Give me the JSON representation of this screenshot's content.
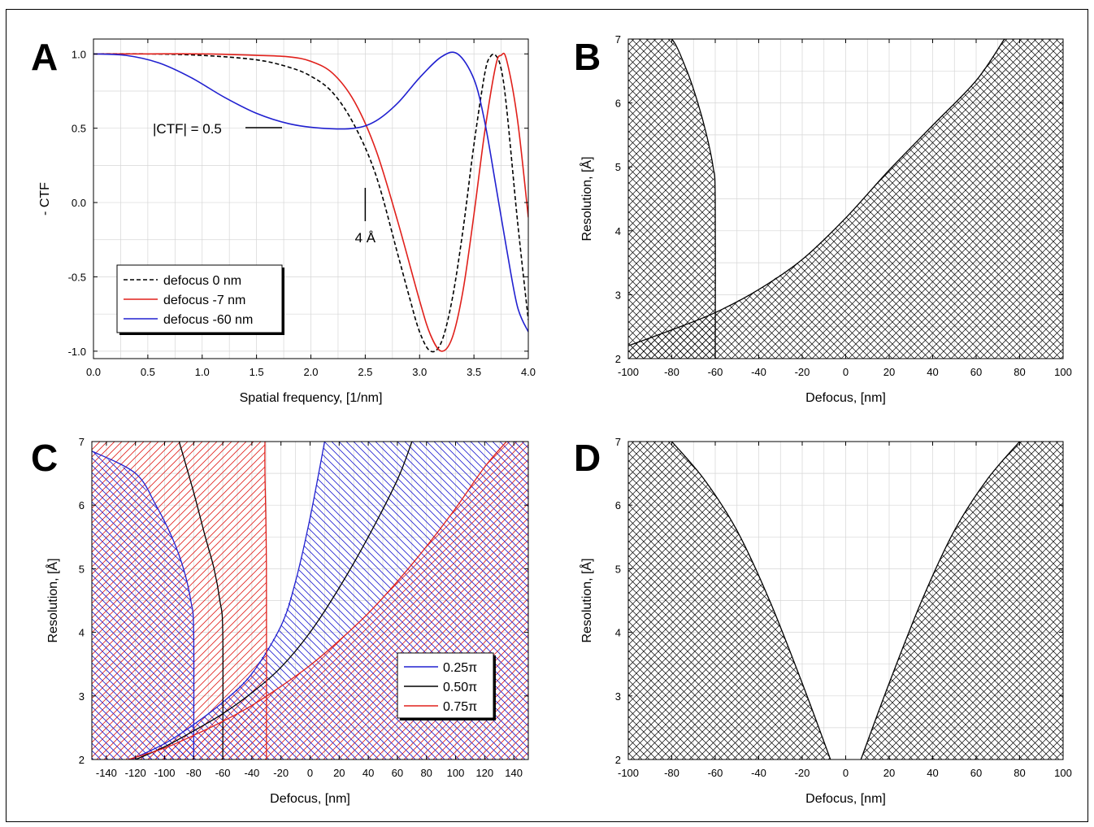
{
  "chart_data": [
    {
      "panel": "A",
      "type": "line",
      "xlabel": "Spatial frequency, [1/nm]",
      "ylabel": "- CTF",
      "xlim": [
        0.0,
        4.0
      ],
      "ylim": [
        -1.05,
        1.1
      ],
      "xticks": [
        "0.0",
        "0.5",
        "1.0",
        "1.5",
        "2.0",
        "2.5",
        "3.0",
        "3.5",
        "4.0"
      ],
      "yticks": [
        "1.0",
        "0.5",
        "0.0",
        "-0.5",
        "-1.0"
      ],
      "grid": true,
      "legend_position": "bottom-left",
      "series": [
        {
          "name": "defocus 0 nm",
          "color": "#000000",
          "dash": "dashed",
          "x": [
            0.0,
            0.5,
            1.0,
            1.5,
            1.8,
            2.0,
            2.2,
            2.4,
            2.6,
            2.8,
            2.9,
            3.0,
            3.1,
            3.2,
            3.3,
            3.4,
            3.5,
            3.6,
            3.65,
            3.7,
            3.75,
            3.8,
            3.9,
            4.0
          ],
          "y": [
            1.0,
            1.0,
            0.99,
            0.96,
            0.91,
            0.85,
            0.74,
            0.52,
            0.18,
            -0.35,
            -0.62,
            -0.87,
            -1.0,
            -0.94,
            -0.65,
            -0.18,
            0.39,
            0.87,
            0.98,
            0.99,
            0.9,
            0.64,
            -0.12,
            -0.79
          ]
        },
        {
          "name": "defocus -7 nm",
          "color": "#e0201b",
          "dash": "solid",
          "x": [
            0.0,
            0.5,
            1.0,
            1.5,
            1.8,
            2.0,
            2.2,
            2.4,
            2.6,
            2.8,
            3.0,
            3.1,
            3.2,
            3.3,
            3.4,
            3.5,
            3.6,
            3.7,
            3.75,
            3.8,
            3.9,
            4.0
          ],
          "y": [
            1.0,
            1.0,
            1.0,
            0.99,
            0.98,
            0.95,
            0.87,
            0.68,
            0.35,
            -0.13,
            -0.66,
            -0.89,
            -1.0,
            -0.91,
            -0.59,
            -0.08,
            0.48,
            0.92,
            0.99,
            0.96,
            0.56,
            -0.1
          ]
        },
        {
          "name": "defocus -60 nm",
          "color": "#2020d0",
          "dash": "solid",
          "x": [
            0.0,
            0.3,
            0.6,
            0.9,
            1.2,
            1.5,
            1.8,
            2.1,
            2.4,
            2.6,
            2.8,
            3.0,
            3.2,
            3.35,
            3.5,
            3.6,
            3.7,
            3.8,
            3.9,
            4.0
          ],
          "y": [
            1.0,
            0.99,
            0.94,
            0.84,
            0.71,
            0.6,
            0.53,
            0.5,
            0.5,
            0.55,
            0.67,
            0.84,
            0.98,
            1.0,
            0.83,
            0.54,
            0.12,
            -0.31,
            -0.7,
            -0.87
          ]
        }
      ],
      "annotations": [
        "|CTF| = 0.5",
        "4 Å"
      ]
    },
    {
      "panel": "B",
      "type": "area",
      "xlabel": "Defocus, [nm]",
      "ylabel": "Resolution, [Å]",
      "xlim": [
        -100,
        100
      ],
      "ylim": [
        2,
        7
      ],
      "xticks": [
        "-100",
        "-80",
        "-60",
        "-40",
        "-20",
        "0",
        "20",
        "40",
        "60",
        "80",
        "100"
      ],
      "yticks": [
        "2",
        "3",
        "4",
        "5",
        "6",
        "7"
      ],
      "grid": true,
      "fill": "black crosshatch",
      "regions": [
        {
          "boundary_x": [
            -60,
            -60,
            -61,
            -64,
            -68,
            -73,
            -80,
            -87,
            -92
          ],
          "boundary_y": [
            2,
            4.5,
            5.0,
            5.5,
            6.0,
            6.5,
            7.0,
            7.0,
            7.0
          ]
        },
        {
          "boundary_x": [
            -100,
            -80,
            -60,
            -40,
            -20,
            0,
            20,
            40,
            60,
            73
          ],
          "boundary_y": [
            2.2,
            2.45,
            2.72,
            3.08,
            3.55,
            4.2,
            4.95,
            5.65,
            6.35,
            7.0
          ]
        }
      ]
    },
    {
      "panel": "C",
      "type": "area",
      "xlabel": "Defocus, [nm]",
      "ylabel": "Resolution, [Å]",
      "xlim": [
        -150,
        150
      ],
      "ylim": [
        2,
        7
      ],
      "xticks": [
        "-140",
        "-120",
        "-100",
        "-80",
        "-60",
        "-40",
        "-20",
        "0",
        "20",
        "40",
        "60",
        "80",
        "100",
        "120",
        "140"
      ],
      "yticks": [
        "2",
        "3",
        "4",
        "5",
        "6",
        "7"
      ],
      "grid": true,
      "legend_position": "bottom-right",
      "series": [
        {
          "name": "0.25π",
          "color": "#2020d0",
          "left_x": [
            -80,
            -80,
            -82,
            -87,
            -95,
            -106,
            -120,
            -150
          ],
          "left_y": [
            2,
            4.0,
            4.5,
            5.0,
            5.5,
            6.0,
            6.5,
            6.85
          ],
          "right_x": [
            -123,
            -100,
            -80,
            -60,
            -40,
            -20,
            -10,
            0,
            10
          ],
          "right_y": [
            2.0,
            2.25,
            2.55,
            2.9,
            3.35,
            4.1,
            4.8,
            5.8,
            7.0
          ]
        },
        {
          "name": "0.50π",
          "color": "#000000",
          "left_x": [
            -60,
            -60,
            -62,
            -66,
            -72,
            -80,
            -90
          ],
          "left_y": [
            2,
            4.0,
            4.5,
            5.0,
            5.5,
            6.2,
            7.0
          ],
          "right_x": [
            -120,
            -100,
            -80,
            -60,
            -40,
            -20,
            0,
            20,
            40,
            60,
            70
          ],
          "right_y": [
            2.0,
            2.2,
            2.45,
            2.72,
            3.05,
            3.45,
            4.0,
            4.7,
            5.5,
            6.4,
            7.0
          ]
        },
        {
          "name": "0.75π",
          "color": "#e0201b",
          "left_x": [
            -30,
            -30,
            -31,
            -31
          ],
          "left_y": [
            2,
            5.0,
            6.5,
            7.0
          ],
          "right_x": [
            -125,
            -100,
            -80,
            -60,
            -40,
            -20,
            0,
            20,
            40,
            60,
            80,
            100,
            120,
            135
          ],
          "right_y": [
            2.0,
            2.18,
            2.38,
            2.6,
            2.85,
            3.15,
            3.48,
            3.87,
            4.3,
            4.8,
            5.35,
            5.95,
            6.6,
            7.0
          ]
        }
      ]
    },
    {
      "panel": "D",
      "type": "area",
      "xlabel": "Defocus, [nm]",
      "ylabel": "Resolution, [Å]",
      "xlim": [
        -100,
        100
      ],
      "ylim": [
        2,
        7
      ],
      "xticks": [
        "-100",
        "-80",
        "-60",
        "-40",
        "-20",
        "0",
        "20",
        "40",
        "60",
        "80",
        "100"
      ],
      "yticks": [
        "2",
        "3",
        "4",
        "5",
        "6",
        "7"
      ],
      "grid": true,
      "fill": "black crosshatch",
      "regions": [
        {
          "boundary_x": [
            -7,
            -20,
            -35,
            -50,
            -65,
            -80
          ],
          "boundary_y": [
            2,
            3.2,
            4.5,
            5.6,
            6.4,
            7.0
          ]
        },
        {
          "boundary_x": [
            7,
            20,
            35,
            50,
            65,
            80
          ],
          "boundary_y": [
            2,
            3.2,
            4.5,
            5.6,
            6.4,
            7.0
          ]
        }
      ]
    }
  ],
  "panel_labels": [
    "A",
    "B",
    "C",
    "D"
  ],
  "legend_A": [
    "defocus 0 nm",
    "defocus -7 nm",
    "defocus -60 nm"
  ],
  "legend_C": [
    "0.25π",
    "0.50π",
    "0.75π"
  ],
  "annotation_ctf": "|CTF| = 0.5",
  "annotation_4a": "4 Å",
  "colors": {
    "red": "#e0201b",
    "blue": "#2020d0",
    "black": "#000000",
    "grid": "#d6d6d6"
  }
}
